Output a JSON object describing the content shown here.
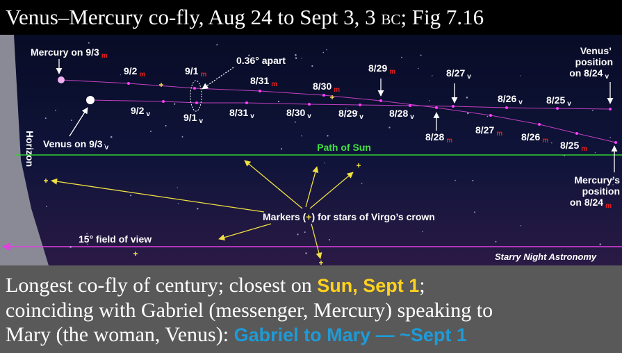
{
  "title": {
    "main": "Venus–Mercury co-fly, Aug 24 to Sept 3, 3 ",
    "era": "BC",
    "end": "; Fig 7.16"
  },
  "mercury_labels": [
    {
      "date": "9/2",
      "sub": "m"
    },
    {
      "date": "9/1",
      "sub": "m"
    },
    {
      "date": "8/31",
      "sub": "m"
    },
    {
      "date": "8/30",
      "sub": "m"
    },
    {
      "date": "8/29",
      "sub": "m"
    },
    {
      "date": "8/28",
      "sub": "m"
    },
    {
      "date": "8/27",
      "sub": "m"
    },
    {
      "date": "8/26",
      "sub": "m"
    },
    {
      "date": "8/25",
      "sub": "m"
    }
  ],
  "venus_labels": [
    {
      "date": "9/2",
      "sub": "v"
    },
    {
      "date": "9/1",
      "sub": "v"
    },
    {
      "date": "8/31",
      "sub": "v"
    },
    {
      "date": "8/30",
      "sub": "v"
    },
    {
      "date": "8/29",
      "sub": "v"
    },
    {
      "date": "8/28",
      "sub": "v"
    },
    {
      "date": "8/27",
      "sub": "v"
    },
    {
      "date": "8/26",
      "sub": "v"
    },
    {
      "date": "8/25",
      "sub": "v"
    }
  ],
  "annotations": {
    "mercury_start": {
      "text": "Mercury on 9/3",
      "sub": "m"
    },
    "venus_start": {
      "text": "Venus on 9/3",
      "sub": "v"
    },
    "separation": "0.36° apart",
    "venus_end": {
      "lines": [
        "Venus’",
        "position",
        "on 8/24"
      ],
      "sub": "v"
    },
    "mercury_end": {
      "lines": [
        "Mercury’s",
        "position",
        "on 8/24"
      ],
      "sub": "m"
    },
    "sun_path": "Path of Sun",
    "horizon": "Horizon",
    "markers": {
      "pre": "Markers (",
      "plus": "+",
      "post": ") for stars of Virgo’s crown"
    },
    "field": "15° field of view",
    "credit": "Starry Night Astronomy"
  },
  "caption": {
    "line1_pre": "Longest co-fly of century; closest on ",
    "line1_highlight": "Sun, Sept 1",
    "line1_post": ";",
    "line2": "coinciding with Gabriel (messenger, Mercury) speaking to",
    "line3_pre": "Mary (the woman, Venus): ",
    "line3_highlight": "Gabriel to Mary — ~Sept 1"
  }
}
